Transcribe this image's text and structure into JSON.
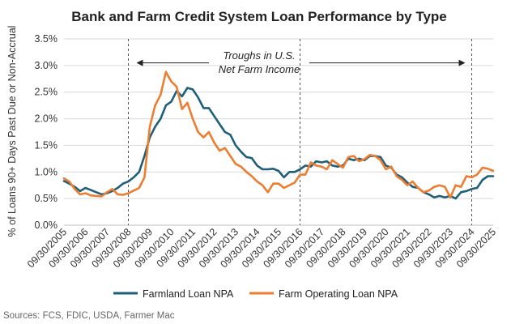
{
  "chart_data": {
    "type": "line",
    "title": "Bank and Farm Credit System Loan Performance by Type",
    "ylabel": "% of Loans 90+ Days Past Due or Non-Accrual",
    "xlabel": "",
    "ylim": [
      0,
      3.5
    ],
    "yticks": [
      "0.0%",
      "0.5%",
      "1.0%",
      "1.5%",
      "2.0%",
      "2.5%",
      "3.0%",
      "3.5%"
    ],
    "ytick_values": [
      0,
      0.5,
      1.0,
      1.5,
      2.0,
      2.5,
      3.0,
      3.5
    ],
    "xrange": [
      2005.75,
      2025.75
    ],
    "xticks": [
      "09/30/2005",
      "09/30/2006",
      "09/30/2007",
      "09/30/2008",
      "09/30/2009",
      "09/30/2010",
      "09/30/2011",
      "09/30/2012",
      "09/30/2013",
      "09/30/2014",
      "09/30/2015",
      "09/30/2016",
      "09/30/2017",
      "09/30/2018",
      "09/30/2019",
      "09/30/2020",
      "09/30/2021",
      "09/30/2022",
      "09/30/2023",
      "09/30/2024",
      "09/30/2025"
    ],
    "xtick_values": [
      2005.75,
      2006.75,
      2007.75,
      2008.75,
      2009.75,
      2010.75,
      2011.75,
      2012.75,
      2013.75,
      2014.75,
      2015.75,
      2016.75,
      2017.75,
      2018.75,
      2019.75,
      2020.75,
      2021.75,
      2022.75,
      2023.75,
      2024.75,
      2025.75
    ],
    "vlines": [
      2008.75,
      2016.75,
      2024.75
    ],
    "annotation": {
      "line1": "Troughs in U.S.",
      "line2": "Net Farm Income",
      "arrow_from": 2008.75,
      "arrow_to": 2024.75,
      "arrow_y": 3.05
    },
    "series": [
      {
        "name": "Farmland Loan NPA",
        "color": "#1f5f7a",
        "x": [
          2005.75,
          2006.0,
          2006.25,
          2006.5,
          2006.75,
          2007.0,
          2007.25,
          2007.5,
          2007.75,
          2008.0,
          2008.25,
          2008.5,
          2008.75,
          2009.0,
          2009.25,
          2009.5,
          2009.75,
          2010.0,
          2010.25,
          2010.5,
          2010.75,
          2011.0,
          2011.25,
          2011.5,
          2011.75,
          2012.0,
          2012.25,
          2012.5,
          2012.75,
          2013.0,
          2013.25,
          2013.5,
          2013.75,
          2014.0,
          2014.25,
          2014.5,
          2014.75,
          2015.0,
          2015.25,
          2015.5,
          2015.75,
          2016.0,
          2016.25,
          2016.5,
          2016.75,
          2017.0,
          2017.25,
          2017.5,
          2017.75,
          2018.0,
          2018.25,
          2018.5,
          2018.75,
          2019.0,
          2019.25,
          2019.5,
          2019.75,
          2020.0,
          2020.25,
          2020.5,
          2020.75,
          2021.0,
          2021.25,
          2021.5,
          2021.75,
          2022.0,
          2022.25,
          2022.5,
          2022.75,
          2023.0,
          2023.25,
          2023.5,
          2023.75,
          2024.0,
          2024.25,
          2024.5,
          2024.75,
          2025.0,
          2025.25,
          2025.5,
          2025.75
        ],
        "y": [
          0.83,
          0.78,
          0.72,
          0.64,
          0.7,
          0.66,
          0.62,
          0.58,
          0.6,
          0.64,
          0.7,
          0.78,
          0.82,
          0.9,
          1.0,
          1.3,
          1.65,
          1.85,
          2.0,
          2.25,
          2.32,
          2.52,
          2.42,
          2.58,
          2.55,
          2.4,
          2.2,
          2.2,
          2.05,
          1.9,
          1.75,
          1.7,
          1.5,
          1.38,
          1.28,
          1.26,
          1.12,
          1.05,
          1.05,
          1.06,
          1.02,
          0.9,
          1.0,
          1.0,
          1.05,
          1.12,
          1.1,
          1.2,
          1.18,
          1.2,
          1.12,
          1.1,
          1.12,
          1.25,
          1.22,
          1.25,
          1.22,
          1.3,
          1.3,
          1.28,
          1.12,
          1.08,
          0.95,
          0.9,
          0.8,
          0.72,
          0.7,
          0.62,
          0.58,
          0.52,
          0.55,
          0.52,
          0.55,
          0.5,
          0.62,
          0.64,
          0.68,
          0.7,
          0.85,
          0.92,
          0.92
        ]
      },
      {
        "name": "Farm Operating Loan NPA",
        "color": "#ed7d31",
        "x": [
          2005.75,
          2006.0,
          2006.25,
          2006.5,
          2006.75,
          2007.0,
          2007.25,
          2007.5,
          2007.75,
          2008.0,
          2008.25,
          2008.5,
          2008.75,
          2009.0,
          2009.25,
          2009.5,
          2009.75,
          2010.0,
          2010.25,
          2010.5,
          2010.75,
          2011.0,
          2011.25,
          2011.5,
          2011.75,
          2012.0,
          2012.25,
          2012.5,
          2012.75,
          2013.0,
          2013.25,
          2013.5,
          2013.75,
          2014.0,
          2014.25,
          2014.5,
          2014.75,
          2015.0,
          2015.25,
          2015.5,
          2015.75,
          2016.0,
          2016.25,
          2016.5,
          2016.75,
          2017.0,
          2017.25,
          2017.5,
          2017.75,
          2018.0,
          2018.25,
          2018.5,
          2018.75,
          2019.0,
          2019.25,
          2019.5,
          2019.75,
          2020.0,
          2020.25,
          2020.5,
          2020.75,
          2021.0,
          2021.25,
          2021.5,
          2021.75,
          2022.0,
          2022.25,
          2022.5,
          2022.75,
          2023.0,
          2023.25,
          2023.5,
          2023.75,
          2024.0,
          2024.25,
          2024.5,
          2024.75,
          2025.0,
          2025.25,
          2025.5,
          2025.75
        ],
        "y": [
          0.88,
          0.82,
          0.68,
          0.58,
          0.6,
          0.56,
          0.55,
          0.54,
          0.62,
          0.68,
          0.58,
          0.57,
          0.6,
          0.65,
          0.7,
          0.9,
          1.85,
          2.25,
          2.45,
          2.88,
          2.7,
          2.6,
          2.18,
          2.3,
          2.0,
          1.75,
          1.65,
          1.75,
          1.55,
          1.4,
          1.45,
          1.3,
          1.15,
          1.1,
          1.0,
          0.92,
          0.82,
          0.75,
          0.62,
          0.78,
          0.78,
          0.7,
          0.75,
          0.8,
          0.95,
          0.95,
          1.18,
          1.12,
          1.1,
          1.05,
          1.22,
          1.15,
          1.08,
          1.28,
          1.3,
          1.2,
          1.24,
          1.32,
          1.3,
          1.22,
          1.05,
          1.1,
          0.92,
          0.85,
          0.75,
          0.82,
          0.7,
          0.62,
          0.65,
          0.72,
          0.75,
          0.72,
          0.52,
          0.75,
          0.72,
          0.92,
          0.9,
          0.95,
          1.08,
          1.06,
          1.02
        ]
      }
    ]
  },
  "legend": {
    "items": [
      "Farmland Loan NPA",
      "Farm Operating Loan NPA"
    ]
  },
  "source": "Sources: FCS, FDIC, USDA, Farmer Mac"
}
